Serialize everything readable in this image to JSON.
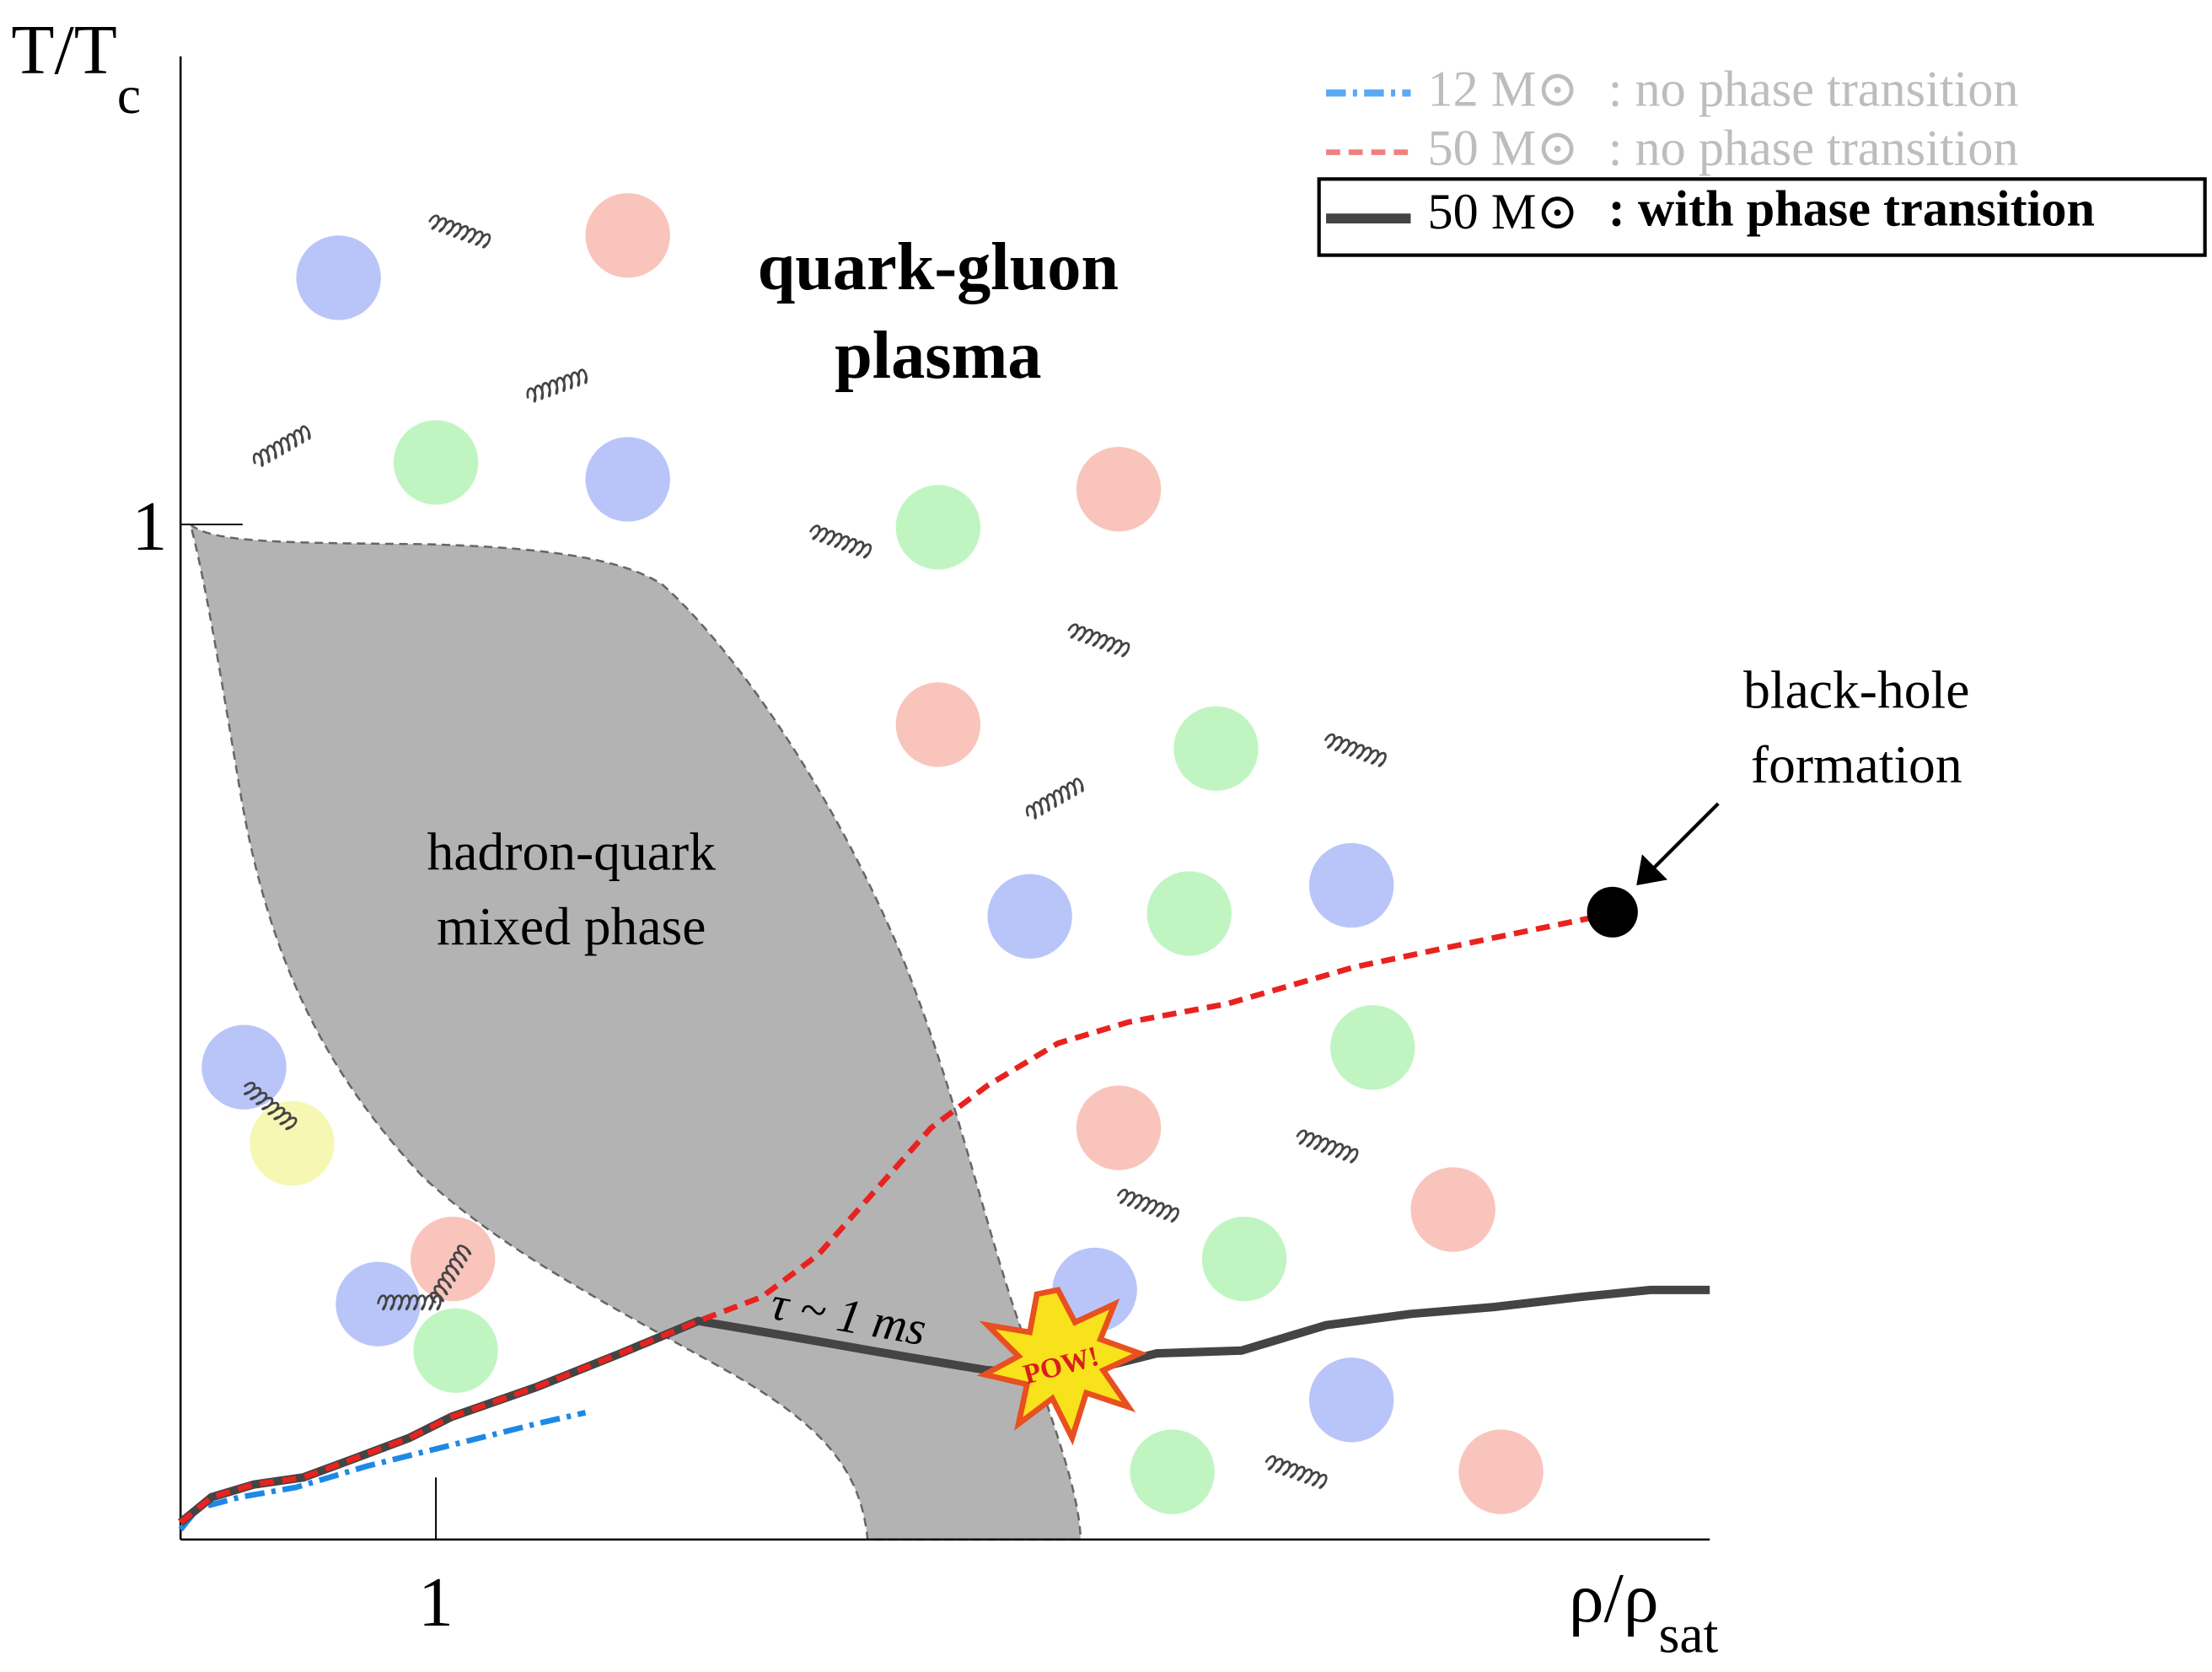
{
  "axes": {
    "y_label": {
      "main": "T/T",
      "sub": "c"
    },
    "x_label": {
      "main": "ρ/ρ",
      "sub": "sat"
    },
    "y_tick": "1",
    "x_tick": "1"
  },
  "legend": [
    {
      "mass": "12 M⊙",
      "label": ": no phase transition"
    },
    {
      "mass": "50 M⊙",
      "label": ": no phase transition"
    },
    {
      "mass": "50 M⊙",
      "label": ": with phase transition"
    }
  ],
  "annotations": {
    "plasma": [
      "quark-gluon",
      "plasma"
    ],
    "mixed": [
      "hadron-quark",
      "mixed phase"
    ],
    "black_hole": [
      "black-hole",
      "formation"
    ],
    "tau": "τ ~ 1 ms",
    "pow": "POW!"
  }
}
